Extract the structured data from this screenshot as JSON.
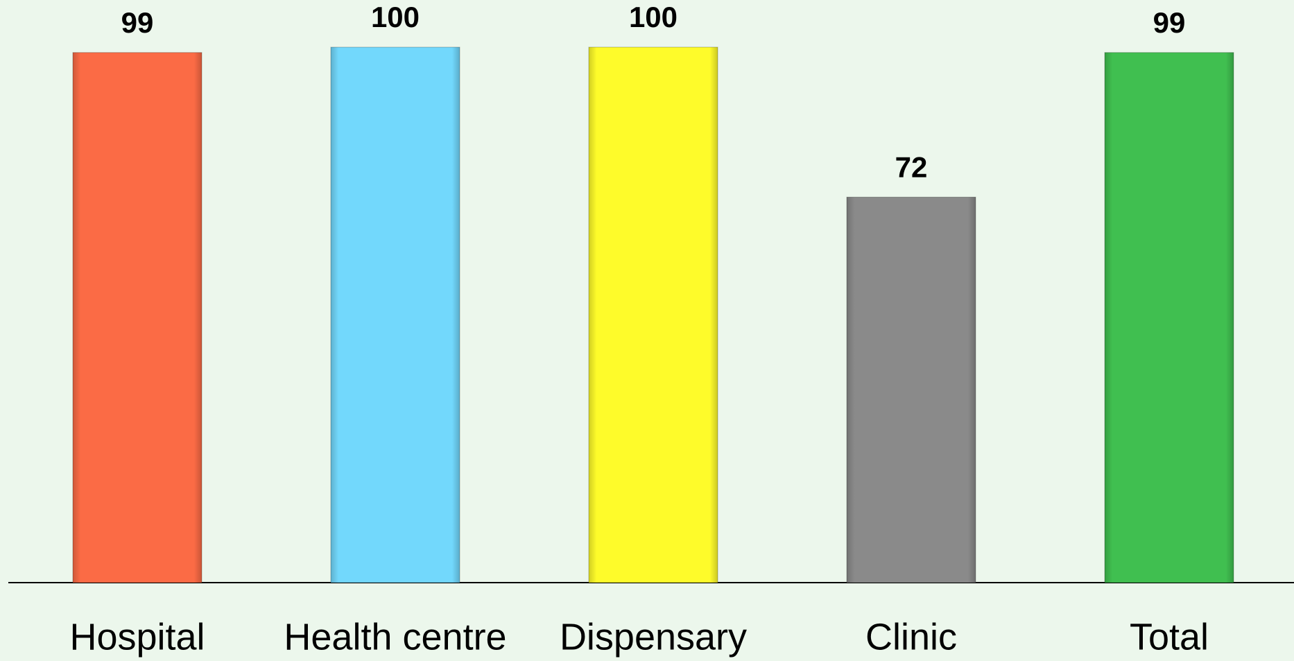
{
  "chart_data": {
    "type": "bar",
    "categories": [
      "Hospital",
      "Health centre",
      "Dispensary",
      "Clinic",
      "Total"
    ],
    "values": [
      99,
      100,
      100,
      72,
      99
    ],
    "colors": [
      "#fb6b45",
      "#72d8fc",
      "#fefb2a",
      "#8a8a8a",
      "#40bf50"
    ],
    "ylim": [
      0,
      100
    ]
  }
}
